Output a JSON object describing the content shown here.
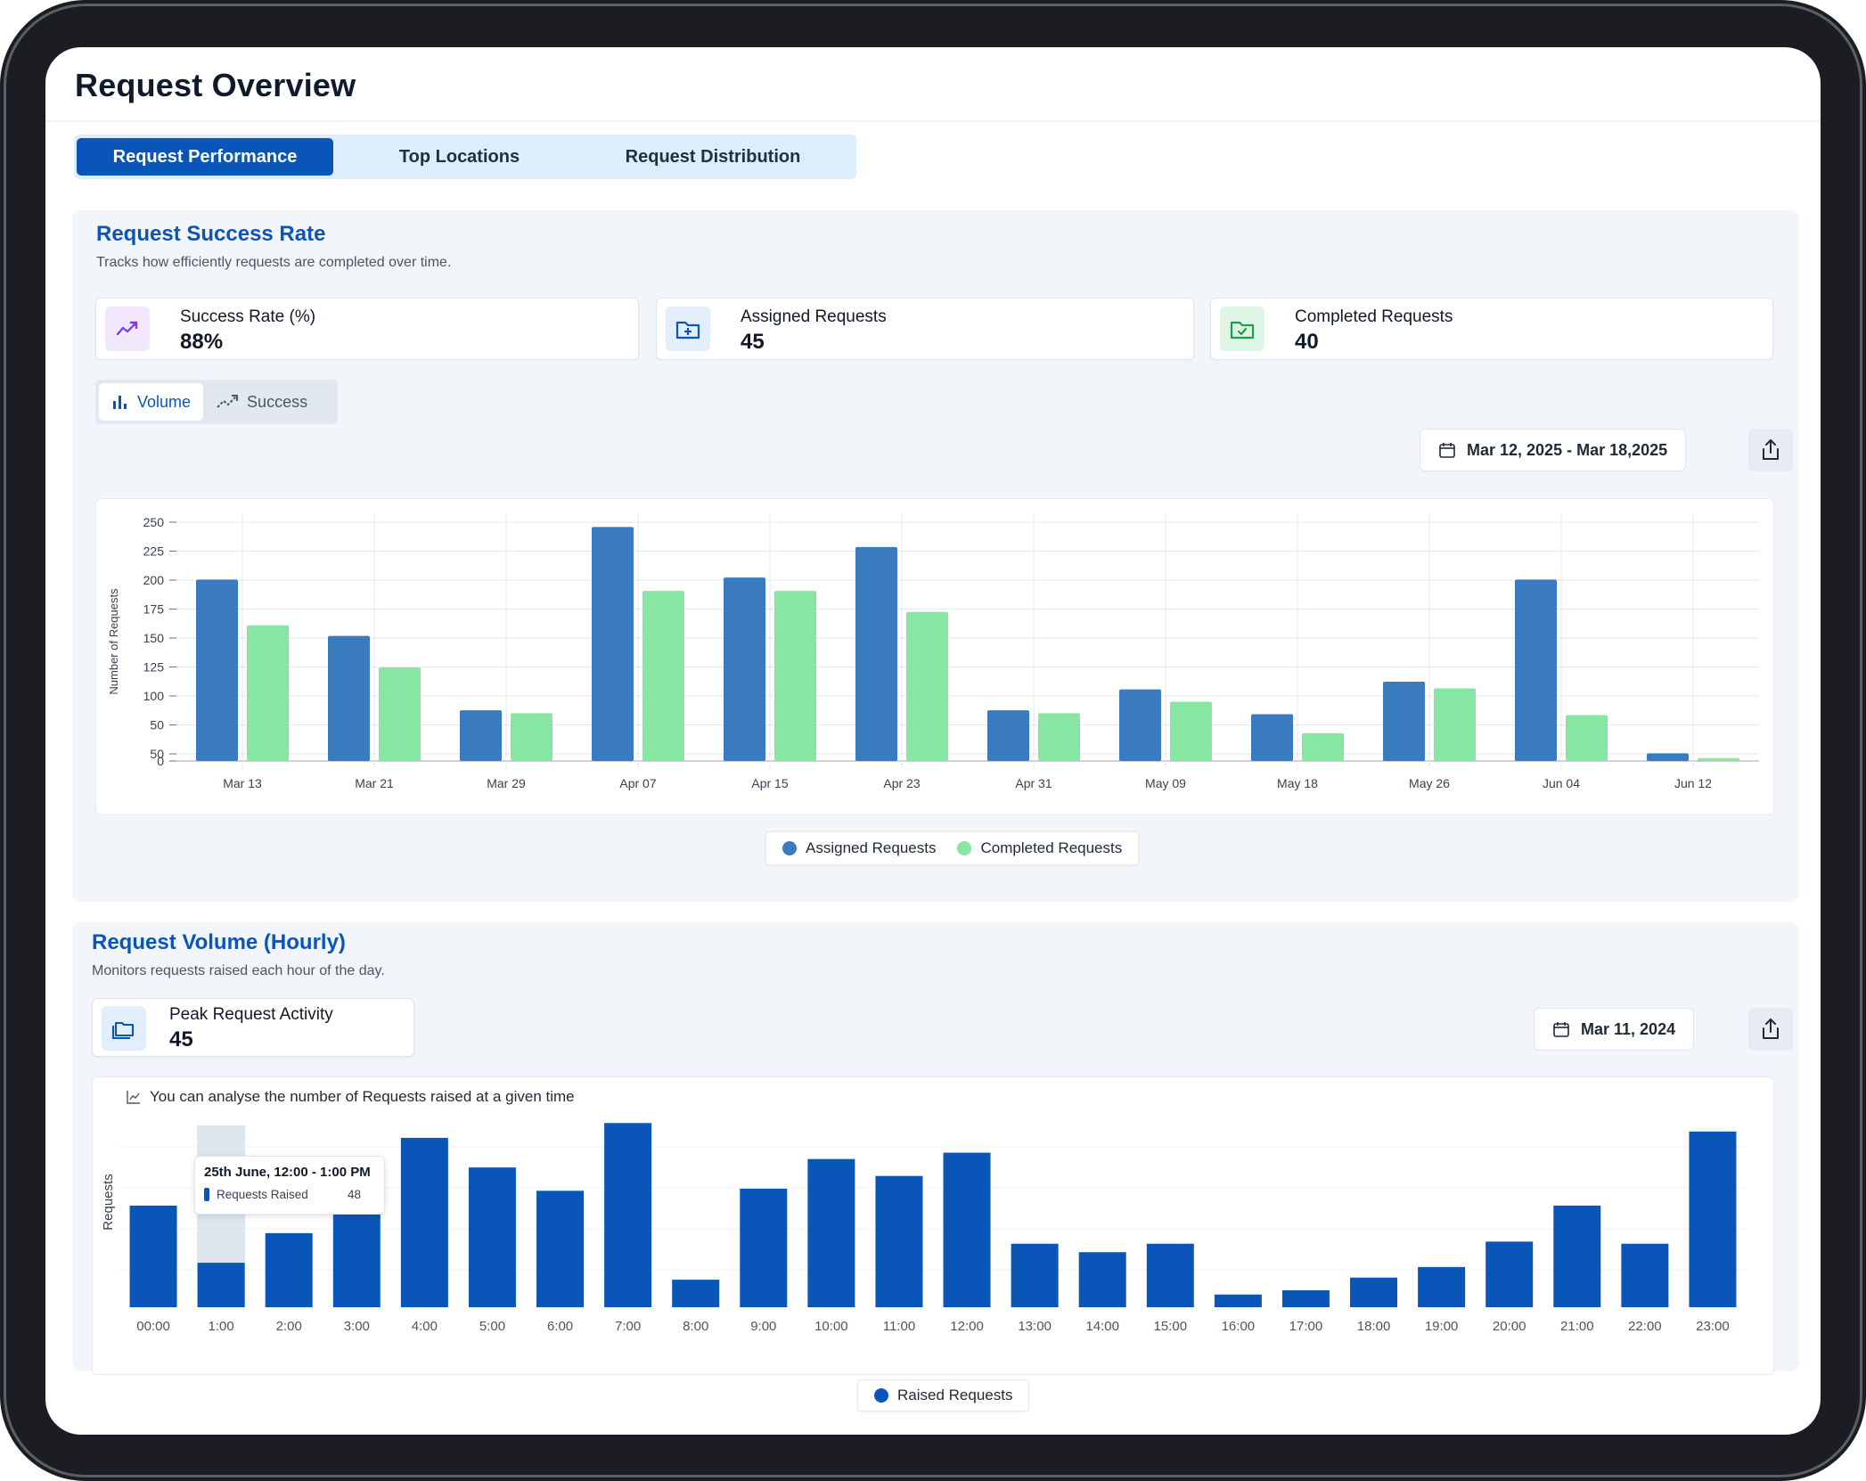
{
  "page": {
    "title": "Request Overview"
  },
  "tabs": [
    "Request Performance",
    "Top Locations",
    "Request Distribution"
  ],
  "success_panel": {
    "title": "Request Success Rate",
    "subtitle": "Tracks how efficiently requests are completed over time.",
    "cards": [
      {
        "label": "Success Rate (%)",
        "value": "88%",
        "icon": "trending-up-icon",
        "icon_color": "#7c3aed"
      },
      {
        "label": "Assigned Requests",
        "value": "45",
        "icon": "folder-plus-icon",
        "icon_color": "#0a56b8"
      },
      {
        "label": "Completed Requests",
        "value": "40",
        "icon": "folder-check-icon",
        "icon_color": "#16a34a"
      }
    ],
    "toggle": {
      "volume": "Volume",
      "success": "Success",
      "selected": "Volume"
    },
    "date_range": "Mar 12, 2025 - Mar 18,2025",
    "legend": {
      "assigned": "Assigned Requests",
      "completed": "Completed Requests"
    }
  },
  "hourly_panel": {
    "title": "Request Volume (Hourly)",
    "subtitle": "Monitors requests raised each hour of the day.",
    "card": {
      "label": "Peak Request Activity",
      "value": "45",
      "icon": "folders-icon"
    },
    "date": "Mar 11, 2024",
    "hint": "You can analyse the number of Requests raised at a given time",
    "tooltip": {
      "title": "25th June, 12:00 - 1:00 PM",
      "series": "Requests Raised",
      "value": "48"
    },
    "legend": "Raised Requests"
  },
  "colors": {
    "assigned": "#3a7bbf",
    "completed": "#86e6a2",
    "raised": "#0a56b8",
    "accent": "#0a56b8"
  },
  "chart_data": [
    {
      "type": "bar",
      "ylabel": "Number of Requests",
      "categories": [
        "Mar 13",
        "Mar 21",
        "Mar 29",
        "Apr 07",
        "Apr 15",
        "Apr 23",
        "Apr 31",
        "May 09",
        "May 18",
        "May 26",
        "Jun 04",
        "Jun 12"
      ],
      "yticks": [
        "250",
        "225",
        "200",
        "175",
        "150",
        "125",
        "100",
        "50",
        "50",
        "0"
      ],
      "ylim": [
        0,
        250
      ],
      "grid": true,
      "legend_position": "bottom-center",
      "series": [
        {
          "name": "Assigned Requests",
          "values": [
            190,
            131,
            53,
            245,
            192,
            224,
            53,
            75,
            49,
            83,
            190,
            8
          ]
        },
        {
          "name": "Completed Requests",
          "values": [
            142,
            98,
            50,
            178,
            178,
            156,
            50,
            62,
            29,
            76,
            48,
            3
          ]
        }
      ]
    },
    {
      "type": "bar",
      "ylabel": "Requests",
      "categories": [
        "00:00",
        "1:00",
        "2:00",
        "3:00",
        "4:00",
        "5:00",
        "6:00",
        "7:00",
        "8:00",
        "9:00",
        "10:00",
        "11:00",
        "12:00",
        "13:00",
        "14:00",
        "15:00",
        "16:00",
        "17:00",
        "18:00",
        "19:00",
        "20:00",
        "21:00",
        "22:00",
        "23:00"
      ],
      "grid": true,
      "legend_position": "bottom-center",
      "highlighted_category": "1:00",
      "series": [
        {
          "name": "Raised Requests",
          "values": [
            48,
            21,
            35,
            51,
            80,
            66,
            55,
            87,
            13,
            56,
            70,
            62,
            73,
            30,
            26,
            30,
            6,
            8,
            14,
            19,
            31,
            48,
            30,
            83
          ]
        }
      ]
    }
  ]
}
